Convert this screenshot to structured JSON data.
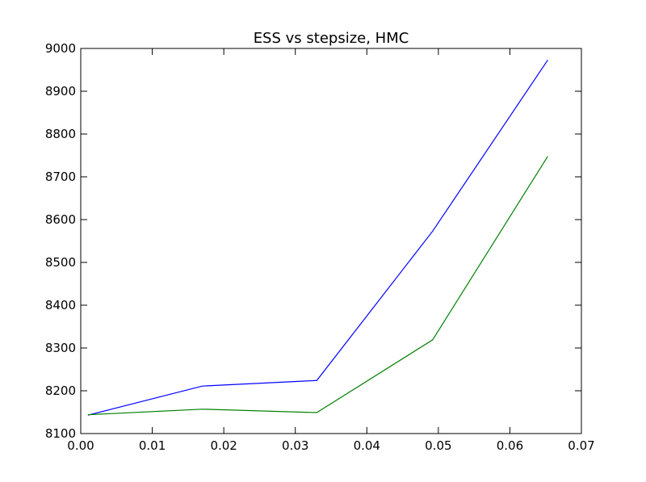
{
  "chart_data": {
    "type": "line",
    "title": "ESS vs stepsize, HMC",
    "xlabel": "",
    "ylabel": "",
    "xlim": [
      0.0,
      0.07
    ],
    "ylim": [
      8100,
      9000
    ],
    "xticks": [
      "0.00",
      "0.01",
      "0.02",
      "0.03",
      "0.04",
      "0.05",
      "0.06",
      "0.07"
    ],
    "yticks": [
      "8100",
      "8200",
      "8300",
      "8400",
      "8500",
      "8600",
      "8700",
      "8800",
      "8900",
      "9000"
    ],
    "grid": false,
    "legend": "none",
    "x": [
      0.001,
      0.017,
      0.033,
      0.0492,
      0.0653
    ],
    "series": [
      {
        "color": "#0000ff",
        "values": [
          8143,
          8211,
          8224,
          8573,
          8973
        ]
      },
      {
        "color": "#008000",
        "values": [
          8144,
          8157,
          8149,
          8319,
          8748
        ]
      }
    ]
  }
}
